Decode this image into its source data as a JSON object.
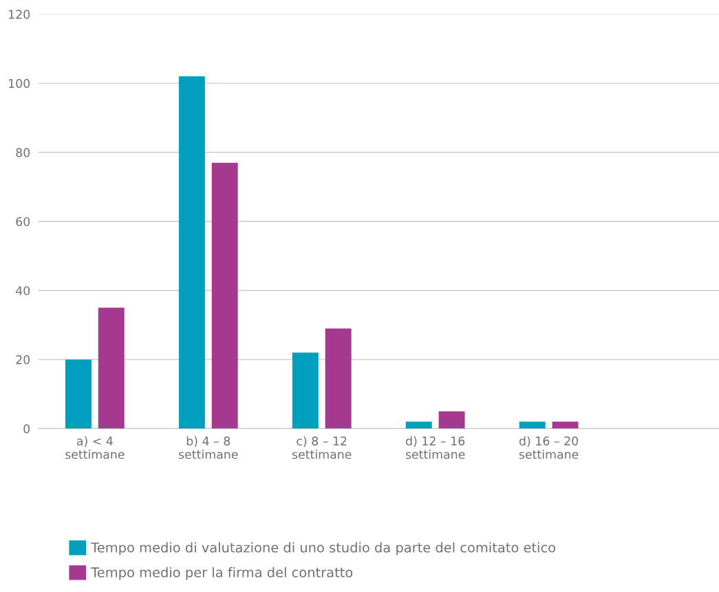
{
  "chart_data": {
    "type": "bar",
    "categories": [
      "a) < 4\nsettimane",
      "b) 4 – 8\nsettimane",
      "c) 8 – 12\nsettimane",
      "d) 12 – 16\nsettimane",
      "d) 16 – 20\nsettimane",
      null
    ],
    "series": [
      {
        "name": "Tempo medio di valutazione di uno studio da parte del comitato etico",
        "color": "#009fbd",
        "values": [
          20,
          102,
          22,
          2,
          2,
          null
        ]
      },
      {
        "name": "Tempo medio per la firma del contratto",
        "color": "#a4398f",
        "values": [
          35,
          77,
          29,
          5,
          2,
          null
        ]
      }
    ],
    "ylim": [
      0,
      120
    ],
    "yticks": [
      0,
      20,
      40,
      60,
      80,
      100,
      120
    ],
    "grid": "y",
    "legend": "bottom"
  }
}
